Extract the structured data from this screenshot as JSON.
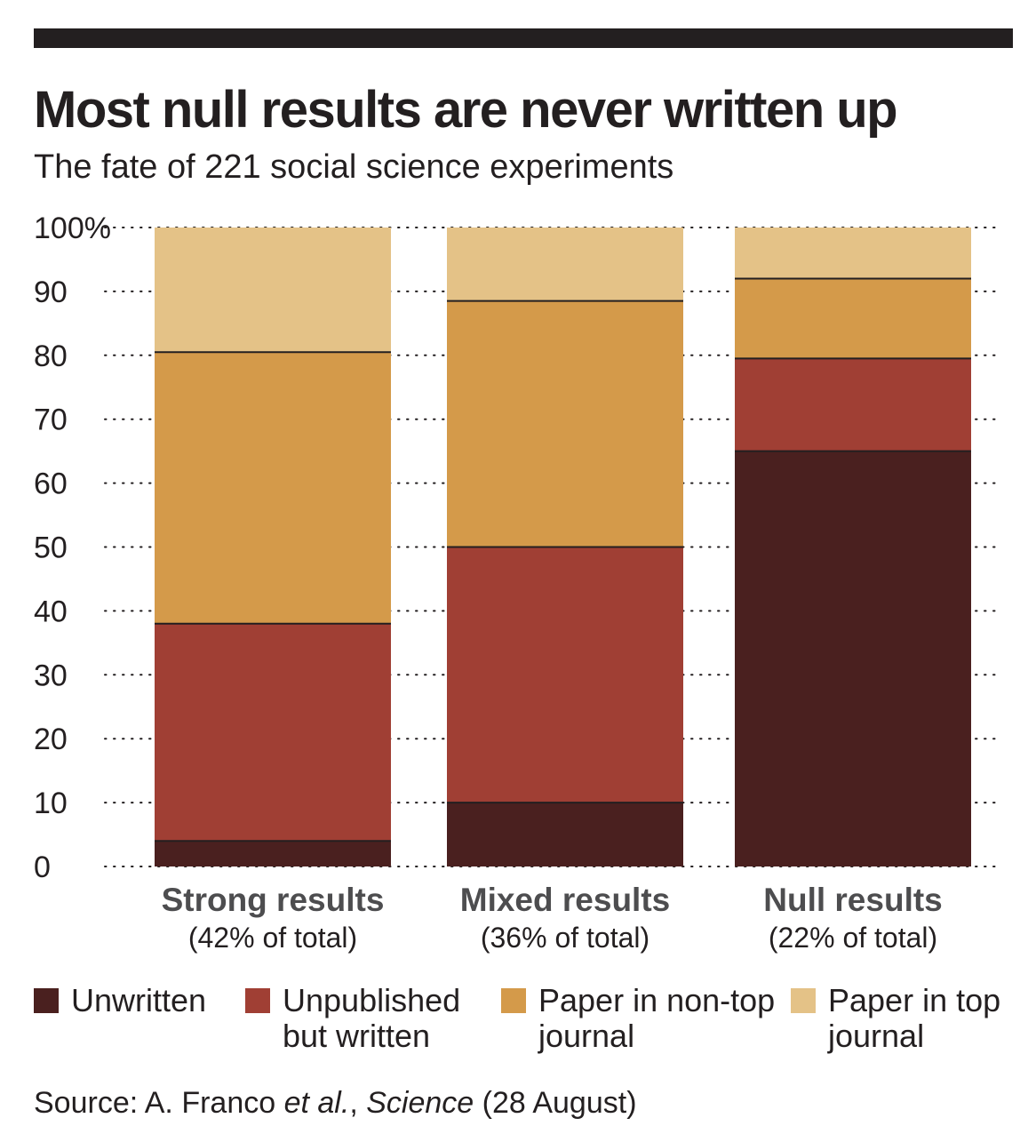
{
  "header": {
    "title": "Most null results are never written up",
    "subtitle": "The fate of 221 social science experiments"
  },
  "chart_data": {
    "type": "bar",
    "stacked": true,
    "title": "Most null results are never written up",
    "subtitle": "The fate of 221 social science experiments",
    "xlabel": "",
    "ylabel": "",
    "ylim": [
      0,
      100
    ],
    "yticks": [
      0,
      10,
      20,
      30,
      40,
      50,
      60,
      70,
      80,
      90,
      100
    ],
    "ytick_labels": [
      "0",
      "10",
      "20",
      "30",
      "40",
      "50",
      "60",
      "70",
      "80",
      "90",
      "100%"
    ],
    "grid": "dotted horizontal",
    "categories": [
      "Strong results",
      "Mixed results",
      "Null results"
    ],
    "category_sublabels": [
      "(42% of total)",
      "(36% of total)",
      "(22% of total)"
    ],
    "series": [
      {
        "name": "Unwritten",
        "color": "#4a201f",
        "values": [
          4,
          10,
          65
        ]
      },
      {
        "name": "Unpublished but written",
        "color": "#a03f34",
        "values": [
          34,
          40,
          14.5
        ]
      },
      {
        "name": "Paper in non-top journal",
        "color": "#d49a4a",
        "values": [
          42.5,
          38.5,
          12.5
        ]
      },
      {
        "name": "Paper in top journal",
        "color": "#e4c287",
        "values": [
          19.5,
          11.5,
          8
        ]
      }
    ]
  },
  "legend": {
    "items": [
      {
        "label": "Unwritten"
      },
      {
        "label": "Unpublished but written"
      },
      {
        "label": "Paper in non-top journal"
      },
      {
        "label": "Paper in top journal"
      }
    ]
  },
  "source": {
    "prefix": "Source: A. Franco ",
    "etal": "et al.",
    "comma": ", ",
    "journal": "Science",
    "suffix": " (28 August)"
  }
}
